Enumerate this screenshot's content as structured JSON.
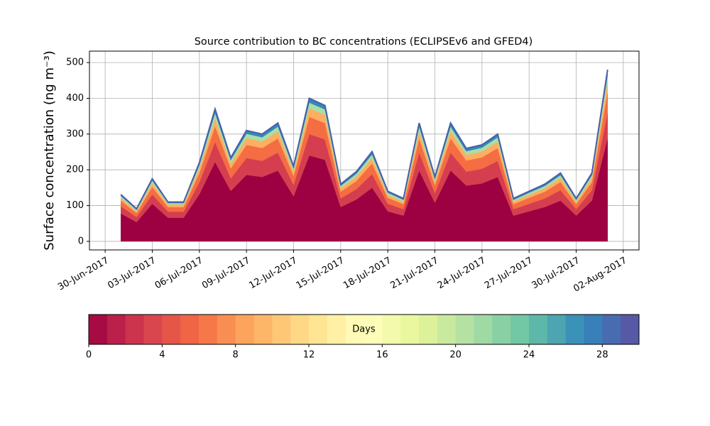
{
  "chart_data": {
    "type": "stacked_area",
    "title": "Source contribution to BC concentrations (ECLIPSEv6 and GFED4)",
    "ylabel": "Surface concentration (ng m⁻³)",
    "x": [
      "2017-07-01",
      "2017-07-02",
      "2017-07-03",
      "2017-07-04",
      "2017-07-05",
      "2017-07-06",
      "2017-07-07",
      "2017-07-08",
      "2017-07-09",
      "2017-07-10",
      "2017-07-11",
      "2017-07-12",
      "2017-07-13",
      "2017-07-14",
      "2017-07-15",
      "2017-07-16",
      "2017-07-17",
      "2017-07-18",
      "2017-07-19",
      "2017-07-20",
      "2017-07-21",
      "2017-07-22",
      "2017-07-23",
      "2017-07-24",
      "2017-07-25",
      "2017-07-26",
      "2017-07-27",
      "2017-07-28",
      "2017-07-29",
      "2017-07-30",
      "2017-07-31",
      "2017-08-01"
    ],
    "series": [
      {
        "color": "#9e0142",
        "values": [
          78,
          54,
          105,
          66,
          66,
          132,
          222,
          141,
          186,
          180,
          198,
          126,
          240,
          228,
          96,
          117,
          150,
          84,
          72,
          198,
          108,
          198,
          156,
          162,
          180,
          72,
          84,
          96,
          114,
          72,
          114,
          288
        ]
      },
      {
        "color": "#d53e4f",
        "values": [
          20,
          14,
          26,
          17,
          17,
          33,
          56,
          35,
          47,
          45,
          50,
          32,
          60,
          57,
          24,
          29,
          38,
          21,
          18,
          50,
          27,
          50,
          39,
          41,
          45,
          18,
          21,
          24,
          29,
          18,
          29,
          72
        ]
      },
      {
        "color": "#f46d43",
        "values": [
          16,
          11,
          21,
          13,
          13,
          26,
          44,
          28,
          37,
          36,
          40,
          25,
          48,
          46,
          19,
          23,
          30,
          17,
          14,
          40,
          22,
          40,
          31,
          32,
          36,
          14,
          17,
          19,
          23,
          14,
          23,
          58
        ]
      },
      {
        "color": "#fdae61",
        "values": [
          8,
          5,
          11,
          7,
          7,
          13,
          22,
          14,
          19,
          18,
          20,
          13,
          24,
          23,
          10,
          12,
          15,
          8,
          7,
          20,
          11,
          20,
          16,
          16,
          18,
          7,
          8,
          10,
          11,
          7,
          11,
          29
        ]
      },
      {
        "color": "#abdda4",
        "values": [
          5,
          4,
          7,
          4,
          4,
          9,
          15,
          9,
          12,
          12,
          13,
          8,
          16,
          15,
          6,
          8,
          10,
          6,
          5,
          13,
          7,
          13,
          10,
          11,
          12,
          5,
          6,
          6,
          8,
          5,
          8,
          19
        ]
      },
      {
        "color": "#3288bd",
        "values": [
          4,
          3,
          5,
          3,
          3,
          7,
          11,
          7,
          9,
          9,
          10,
          6,
          12,
          11,
          5,
          6,
          8,
          4,
          4,
          10,
          5,
          10,
          8,
          8,
          9,
          4,
          4,
          5,
          6,
          4,
          6,
          14
        ]
      }
    ],
    "line_color": "#4a5fa8",
    "xlim": [
      "2017-06-29",
      "2017-08-03"
    ],
    "xticks": [
      {
        "value": "2017-06-30",
        "label": "30-Jun-2017"
      },
      {
        "value": "2017-07-03",
        "label": "03-Jul-2017"
      },
      {
        "value": "2017-07-06",
        "label": "06-Jul-2017"
      },
      {
        "value": "2017-07-09",
        "label": "09-Jul-2017"
      },
      {
        "value": "2017-07-12",
        "label": "12-Jul-2017"
      },
      {
        "value": "2017-07-15",
        "label": "15-Jul-2017"
      },
      {
        "value": "2017-07-18",
        "label": "18-Jul-2017"
      },
      {
        "value": "2017-07-21",
        "label": "21-Jul-2017"
      },
      {
        "value": "2017-07-24",
        "label": "24-Jul-2017"
      },
      {
        "value": "2017-07-27",
        "label": "27-Jul-2017"
      },
      {
        "value": "2017-07-30",
        "label": "30-Jul-2017"
      },
      {
        "value": "2017-08-02",
        "label": "02-Aug-2017"
      }
    ],
    "ylim": [
      -24,
      532
    ],
    "yticks": [
      0,
      100,
      200,
      300,
      400,
      500
    ],
    "grid": true,
    "colorbar": {
      "label": "Days",
      "lim": [
        0,
        30
      ],
      "ticks": [
        0,
        4,
        8,
        12,
        16,
        20,
        24,
        28
      ],
      "colormap": [
        "#9e0142",
        "#d53e4f",
        "#f46d43",
        "#fdae61",
        "#fee08b",
        "#ffffbf",
        "#e6f598",
        "#abdda4",
        "#66c2a5",
        "#3288bd",
        "#5e4fa2"
      ]
    }
  }
}
